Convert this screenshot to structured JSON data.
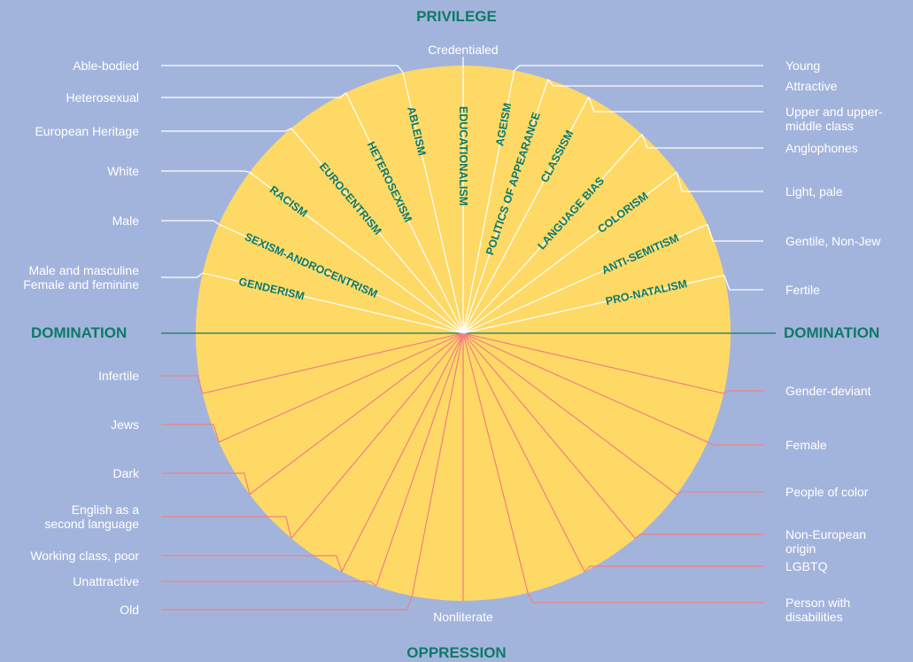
{
  "colors": {
    "background": "#a3b4dc",
    "wheel": "#ffd966",
    "accent": "#0d7a66",
    "privilege_line": "#ffffff",
    "oppression_line": "#f08080"
  },
  "top_label": "PRIVILEGE",
  "bottom_label": "OPPRESSION",
  "left_label": "DOMINATION",
  "right_label": "DOMINATION",
  "top_center": "Credentialed",
  "bottom_center": "Nonliterate",
  "axes": [
    {
      "name": "EDUCATIONALISM",
      "privileged": "Credentialed",
      "oppressed": "Nonliterate"
    },
    {
      "name": "ABLEISM",
      "privileged": "Able-bodied",
      "oppressed": "Person with disabilities"
    },
    {
      "name": "HETEROSEXISM",
      "privileged": "Heterosexual",
      "oppressed": "LGBTQ"
    },
    {
      "name": "EUROCENTRISM",
      "privileged": "European Heritage",
      "oppressed": "Non-European origin"
    },
    {
      "name": "RACISM",
      "privileged": "White",
      "oppressed": "People of color"
    },
    {
      "name": "SEXISM-ANDROCENTRISM",
      "privileged": "Male",
      "oppressed": "Female"
    },
    {
      "name": "GENDERISM",
      "privileged": "Male and masculine Female and feminine",
      "oppressed": "Gender-deviant"
    },
    {
      "name": "AGEISM",
      "privileged": "Young",
      "oppressed": "Old"
    },
    {
      "name": "POLITICS OF APPEARANCE",
      "privileged": "Attractive",
      "oppressed": "Unattractive"
    },
    {
      "name": "CLASSISM",
      "privileged": "Upper and upper-middle class",
      "oppressed": "Working class, poor"
    },
    {
      "name": "LANGUAGE BIAS",
      "privileged": "Anglophones",
      "oppressed": "English as a second language"
    },
    {
      "name": "COLORISM",
      "privileged": "Light, pale",
      "oppressed": "Dark"
    },
    {
      "name": "ANTI-SEMITISM",
      "privileged": "Gentile, Non-Jew",
      "oppressed": "Jews"
    },
    {
      "name": "PRO-NATALISM",
      "privileged": "Fertile",
      "oppressed": "Infertile"
    }
  ]
}
